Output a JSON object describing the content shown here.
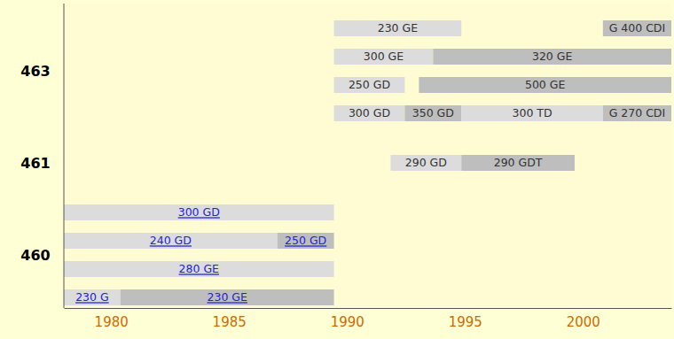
{
  "chart_data": {
    "type": "timeline",
    "xlim": [
      1978,
      2003.75
    ],
    "xticks": [
      1980,
      1985,
      1990,
      1995,
      2000
    ],
    "groups": [
      {
        "label": "463",
        "rows": [
          [
            {
              "name": "230 GE",
              "start": 1989.45,
              "end": 1994.85,
              "color": "#dcdcdc"
            },
            {
              "name": "G 400 CDI",
              "start": 2000.85,
              "end": 2003.75,
              "color": "#bebebe"
            }
          ],
          [
            {
              "name": "300 GE",
              "start": 1989.45,
              "end": 1993.65,
              "color": "#dcdcdc"
            },
            {
              "name": "320 GE",
              "start": 1993.65,
              "end": 2003.75,
              "color": "#bebebe"
            }
          ],
          [
            {
              "name": "250 GD",
              "start": 1989.45,
              "end": 1992.45,
              "color": "#dcdcdc"
            },
            {
              "name": "500 GE",
              "start": 1993.05,
              "end": 2003.75,
              "color": "#bebebe"
            }
          ],
          [
            {
              "name": "300 GD",
              "start": 1989.45,
              "end": 1992.45,
              "color": "#dcdcdc"
            },
            {
              "name": "350 GD",
              "start": 1992.45,
              "end": 1994.85,
              "color": "#bebebe"
            },
            {
              "name": "300 TD",
              "start": 1994.85,
              "end": 2000.85,
              "color": "#dcdcdc"
            },
            {
              "name": "G 270 CDI",
              "start": 2000.85,
              "end": 2003.75,
              "color": "#bebebe"
            }
          ]
        ]
      },
      {
        "label": "461",
        "rows": [
          [
            {
              "name": "290 GD",
              "start": 1991.85,
              "end": 1994.85,
              "color": "#dcdcdc"
            },
            {
              "name": "290 GDT",
              "start": 1994.85,
              "end": 1999.65,
              "color": "#bebebe"
            }
          ]
        ]
      },
      {
        "label": "460",
        "rows": [
          [
            {
              "name": "300 GD",
              "start": 1978,
              "end": 1989.45,
              "color": "#dcdcdc"
            }
          ],
          [
            {
              "name": "240 GD",
              "start": 1978,
              "end": 1987.05,
              "color": "#dcdcdc"
            },
            {
              "name": "250 GD",
              "start": 1987.05,
              "end": 1989.45,
              "color": "#bebebe"
            }
          ],
          [
            {
              "name": "280 GE",
              "start": 1978,
              "end": 1989.45,
              "color": "#dcdcdc"
            }
          ],
          [
            {
              "name": "230 G",
              "start": 1978,
              "end": 1980.4,
              "color": "#dcdcdc"
            },
            {
              "name": "230 GE",
              "start": 1980.4,
              "end": 1989.45,
              "color": "#bebebe"
            }
          ]
        ]
      }
    ]
  }
}
